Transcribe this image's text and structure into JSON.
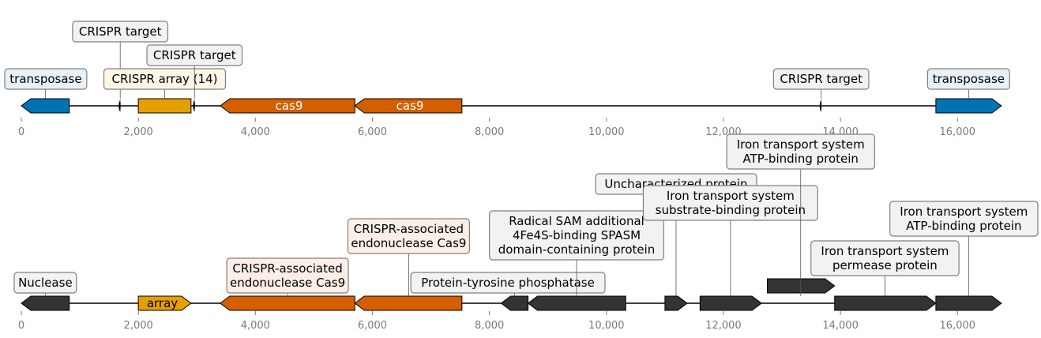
{
  "colors": {
    "transposase": "#0173b2",
    "array": "#e69f00",
    "cas": "#d55e00",
    "other": "#333333",
    "box_default": "#f2f2f2",
    "box_blue": "#e8f1f8",
    "box_yellow": "#fdf5e6",
    "box_orange": "#fbeee6",
    "axis_text": "#7a7a7a"
  },
  "tracks": [
    {
      "ticks": [
        "0",
        "2,000",
        "4,000",
        "6,000",
        "8,000",
        "10,000",
        "12,000",
        "14,000",
        "16,000"
      ],
      "features": [
        {
          "start": 0,
          "end": 820,
          "strand": -1,
          "color": "transposase",
          "kind": "gene"
        },
        {
          "start": 1680,
          "end": 1700,
          "strand": -1,
          "color": "other",
          "kind": "marker"
        },
        {
          "start": 2000,
          "end": 2900,
          "strand": 0,
          "color": "array",
          "kind": "box"
        },
        {
          "start": 2950,
          "end": 2970,
          "strand": -1,
          "color": "other",
          "kind": "marker"
        },
        {
          "start": 3400,
          "end": 5700,
          "strand": -1,
          "color": "cas",
          "kind": "gene",
          "inner": "cas9"
        },
        {
          "start": 5700,
          "end": 7530,
          "strand": -1,
          "color": "cas",
          "kind": "gene",
          "inner": "cas9"
        },
        {
          "start": 13660,
          "end": 13680,
          "strand": -1,
          "color": "other",
          "kind": "marker"
        },
        {
          "start": 15630,
          "end": 16750,
          "strand": 1,
          "color": "transposase",
          "kind": "gene"
        }
      ],
      "labels": [
        {
          "text": [
            "transposase"
          ],
          "at": 410,
          "box": "box_blue",
          "level": 0
        },
        {
          "text": [
            "CRISPR target"
          ],
          "at": 1690,
          "box": "box_default",
          "level": 2
        },
        {
          "text": [
            "CRISPR array (14)"
          ],
          "at": 2450,
          "box": "box_yellow",
          "level": 0
        },
        {
          "text": [
            "CRISPR target"
          ],
          "at": 2960,
          "box": "box_default",
          "level": 1
        },
        {
          "text": [
            "CRISPR target"
          ],
          "at": 13670,
          "box": "box_default",
          "level": 0
        },
        {
          "text": [
            "transposase"
          ],
          "at": 16190,
          "box": "box_blue",
          "level": 0
        }
      ]
    },
    {
      "ticks": [
        "0",
        "2,000",
        "4,000",
        "6,000",
        "8,000",
        "10,000",
        "12,000",
        "14,000",
        "16,000"
      ],
      "features": [
        {
          "start": 0,
          "end": 820,
          "strand": -1,
          "color": "other",
          "kind": "gene"
        },
        {
          "start": 2000,
          "end": 2900,
          "strand": 1,
          "color": "array",
          "kind": "gene",
          "inner": "array"
        },
        {
          "start": 3400,
          "end": 5700,
          "strand": -1,
          "color": "cas",
          "kind": "gene"
        },
        {
          "start": 5700,
          "end": 7530,
          "strand": -1,
          "color": "cas",
          "kind": "gene"
        },
        {
          "start": 8200,
          "end": 8660,
          "strand": -1,
          "color": "other",
          "kind": "gene"
        },
        {
          "start": 8660,
          "end": 10330,
          "strand": -1,
          "color": "other",
          "kind": "gene"
        },
        {
          "start": 11000,
          "end": 11380,
          "strand": 1,
          "color": "other",
          "kind": "gene"
        },
        {
          "start": 11600,
          "end": 12650,
          "strand": 1,
          "color": "other",
          "kind": "gene"
        },
        {
          "start": 12750,
          "end": 13900,
          "strand": 1,
          "color": "other",
          "kind": "gene",
          "row": 1
        },
        {
          "start": 13900,
          "end": 15630,
          "strand": 1,
          "color": "other",
          "kind": "gene"
        },
        {
          "start": 15630,
          "end": 16750,
          "strand": 1,
          "color": "other",
          "kind": "gene"
        }
      ],
      "labels": [
        {
          "text": [
            "Nuclease"
          ],
          "at": 410,
          "box": "box_default",
          "level": 0,
          "dy": 0
        },
        {
          "text": [
            "CRISPR-associated",
            "endonuclease Cas9"
          ],
          "at": 4550,
          "box": "box_orange",
          "level": 0
        },
        {
          "text": [
            "CRISPR-associated",
            "endonuclease Cas9"
          ],
          "at": 6620,
          "box": "box_orange",
          "level": 2
        },
        {
          "text": [
            "Protein-tyrosine phosphatase"
          ],
          "at": 8430,
          "box": "box_default",
          "level": 0,
          "anchorOffset": -1800
        },
        {
          "text": [
            "Radical SAM additional",
            "4Fe4S-binding SPASM",
            "domain-containing protein"
          ],
          "at": 9490,
          "box": "box_default",
          "level": 3
        },
        {
          "text": [
            "Uncharacterized protein"
          ],
          "at": 11190,
          "box": "box_default",
          "level": 6
        },
        {
          "text": [
            "Iron transport system",
            "substrate-binding protein"
          ],
          "at": 12120,
          "box": "box_default",
          "level": 5
        },
        {
          "text": [
            "Iron transport system",
            "ATP-binding protein"
          ],
          "at": 13320,
          "box": "box_default",
          "level": 7
        },
        {
          "text": [
            "Iron transport system",
            "permease protein"
          ],
          "at": 14760,
          "box": "box_default",
          "level": 1
        },
        {
          "text": [
            "Iron transport system",
            "ATP-binding protein"
          ],
          "at": 16190,
          "box": "box_default",
          "level": 4
        }
      ]
    }
  ]
}
